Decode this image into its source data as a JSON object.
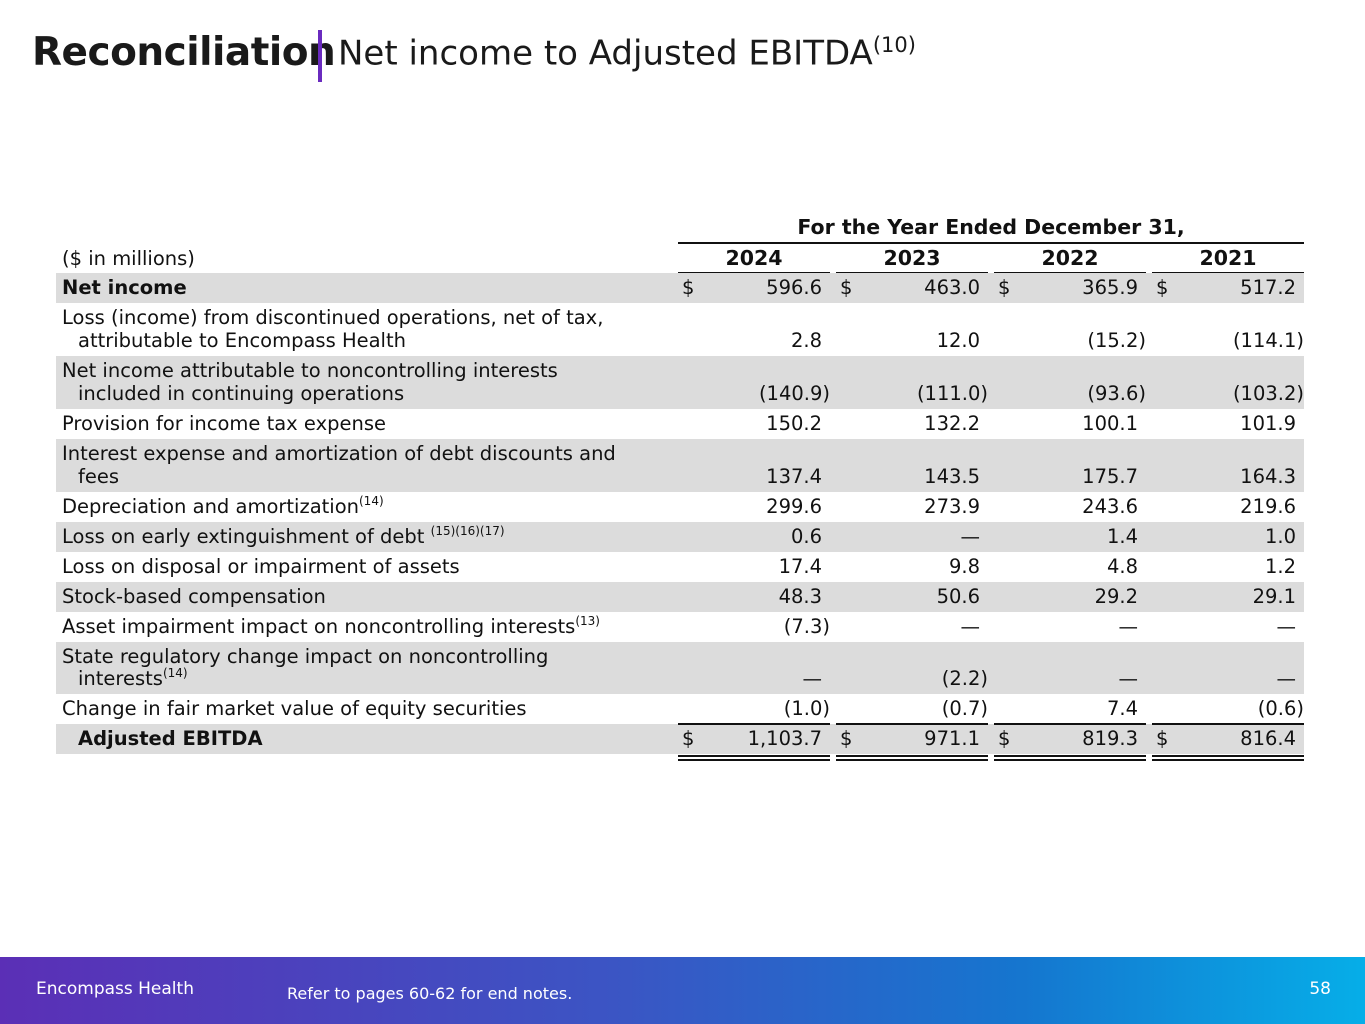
{
  "title": {
    "bold": "Reconciliation",
    "rest": "Net income to Adjusted EBITDA",
    "sup": "(10)"
  },
  "table": {
    "period_header": "For the Year Ended December 31,",
    "units_label": "($ in millions)",
    "years": [
      "2024",
      "2023",
      "2022",
      "2021"
    ],
    "currency_symbol": "$",
    "rows": [
      {
        "label": "Net income",
        "values": [
          "596.6",
          "463.0",
          "365.9",
          "517.2"
        ]
      },
      {
        "label_line1": "Loss (income) from discontinued operations, net of tax,",
        "label_line2": "attributable to Encompass Health",
        "values": [
          "2.8",
          "12.0",
          "(15.2)",
          "(114.1)"
        ]
      },
      {
        "label_line1": "Net income attributable to noncontrolling interests",
        "label_line2": "included in continuing operations",
        "values": [
          "(140.9)",
          "(111.0)",
          "(93.6)",
          "(103.2)"
        ]
      },
      {
        "label": "Provision for income tax expense",
        "values": [
          "150.2",
          "132.2",
          "100.1",
          "101.9"
        ]
      },
      {
        "label_line1": "Interest expense and amortization of debt discounts and",
        "label_line2": "fees",
        "values": [
          "137.4",
          "143.5",
          "175.7",
          "164.3"
        ]
      },
      {
        "label": "Depreciation and amortization",
        "sup": "(14)",
        "values": [
          "299.6",
          "273.9",
          "243.6",
          "219.6"
        ]
      },
      {
        "label": "Loss on early extinguishment of debt ",
        "sup": "(15)(16)(17)",
        "values": [
          "0.6",
          "—",
          "1.4",
          "1.0"
        ]
      },
      {
        "label": "Loss on disposal or impairment of assets",
        "values": [
          "17.4",
          "9.8",
          "4.8",
          "1.2"
        ]
      },
      {
        "label": "Stock-based compensation",
        "values": [
          "48.3",
          "50.6",
          "29.2",
          "29.1"
        ]
      },
      {
        "label": "Asset impairment impact on noncontrolling interests",
        "sup": "(13)",
        "values": [
          "(7.3)",
          "—",
          "—",
          "—"
        ]
      },
      {
        "label_line1": "State regulatory change impact on noncontrolling",
        "label_line2": "interests",
        "sup": "(14)",
        "values": [
          "—",
          "(2.2)",
          "—",
          "—"
        ]
      },
      {
        "label": "Change in fair market value of equity securities",
        "values": [
          "(1.0)",
          "(0.7)",
          "7.4",
          "(0.6)"
        ]
      },
      {
        "label": "Adjusted EBITDA",
        "values": [
          "1,103.7",
          "971.1",
          "819.3",
          "816.4"
        ]
      }
    ]
  },
  "footer": {
    "brand": "Encompass Health",
    "note": "Refer to pages 60-62 for end notes.",
    "page": "58"
  },
  "colors": {
    "title_bar": "#6a2bbf",
    "row_shade": "#dcdcdc",
    "footer_start": "#5b2fb6",
    "footer_end": "#06aee8"
  }
}
